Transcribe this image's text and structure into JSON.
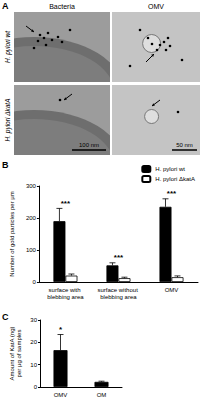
{
  "panel_a": {
    "panel_label": "A",
    "columns": [
      "Bacteria",
      "OMV"
    ],
    "rows": [
      "H. pylori wt",
      "H. pylori ΔkatA"
    ],
    "scale_bars": [
      "100 nm",
      "50 nm"
    ]
  },
  "chart_data": [
    {
      "panel_label": "B",
      "type": "bar",
      "y_label": "Number of gold particles per µm",
      "categories": [
        "surface with blebbing area",
        "surface without blebbing area",
        "OMV"
      ],
      "series": [
        {
          "name": "H. pylori wt",
          "color": "#000000",
          "values": [
            190,
            52,
            235
          ],
          "errors": [
            40,
            8,
            25
          ]
        },
        {
          "name": "H. pylori ΔkatA",
          "color": "#ffffff",
          "values": [
            20,
            12,
            15
          ],
          "errors": [
            5,
            3,
            4
          ]
        }
      ],
      "annotations": [
        "***",
        "***",
        "***"
      ],
      "ylim": [
        0,
        300
      ],
      "yticks": [
        0,
        100,
        200,
        300
      ],
      "grid": false,
      "legend": "top-right"
    },
    {
      "panel_label": "C",
      "type": "bar",
      "y_label": "Amount of KatA (ng)\nper µg of samples",
      "categories": [
        "OMV",
        "OM"
      ],
      "values": [
        16.5,
        2.3
      ],
      "errors": [
        7,
        0.3
      ],
      "color": "#000000",
      "annotations": [
        "*",
        null
      ],
      "ylim": [
        0,
        30
      ],
      "yticks": [
        0,
        10,
        20,
        30
      ],
      "grid": false
    }
  ]
}
